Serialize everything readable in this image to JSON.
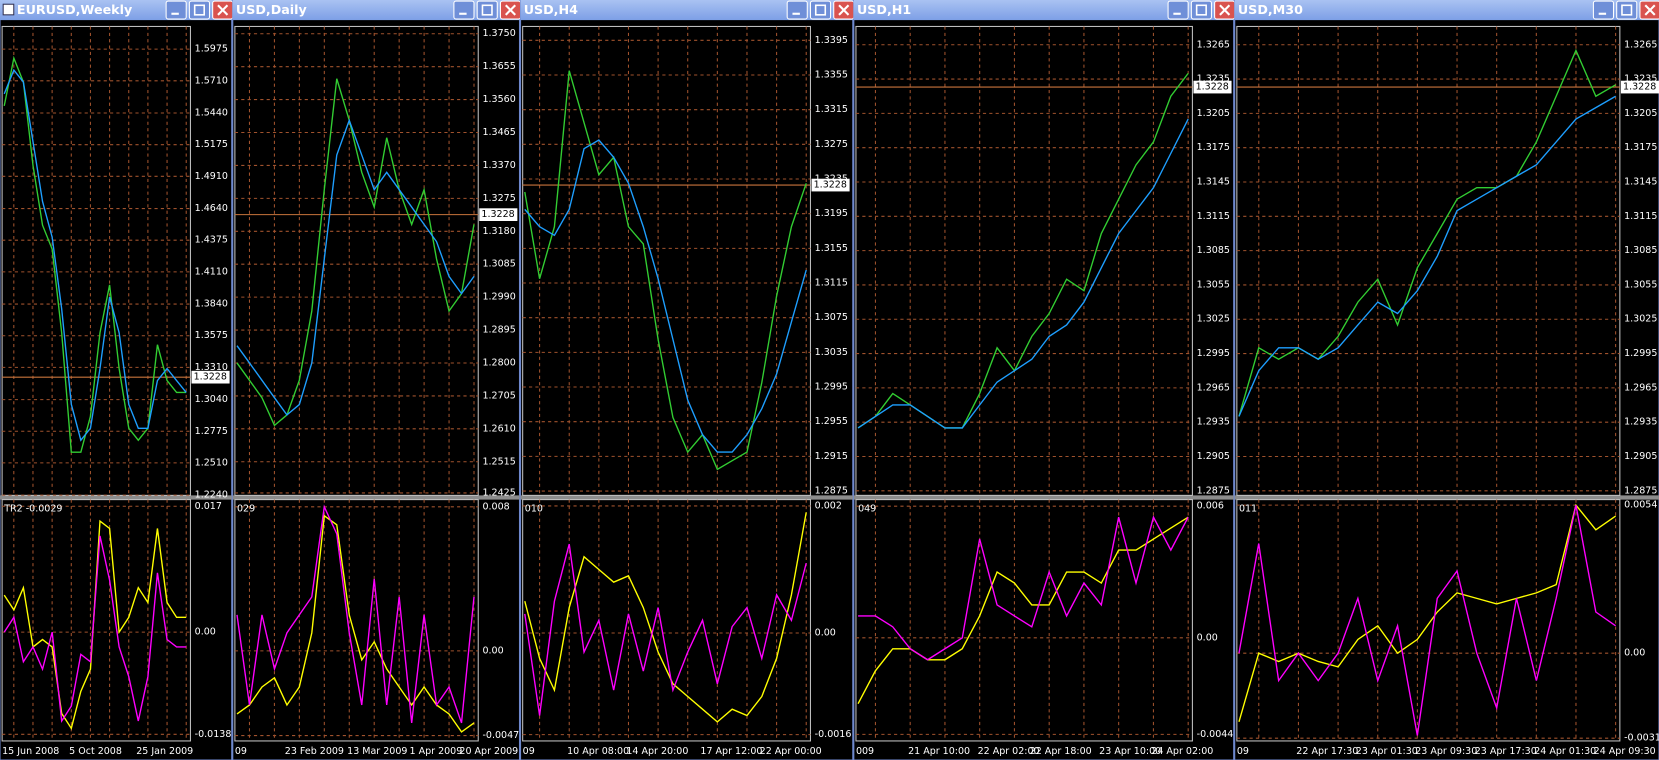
{
  "chart_data": [
    {
      "type": "line",
      "title": "EURUSD,Weekly",
      "categories": [
        "15 Jun 2008",
        null,
        null,
        null,
        null,
        null,
        null,
        "5 Oct 2008",
        null,
        null,
        null,
        null,
        null,
        null,
        "25 Jan 2009",
        null,
        null,
        null,
        null,
        null
      ],
      "series": [
        {
          "color": "#32cd32",
          "values": [
            1.55,
            1.59,
            1.57,
            1.5,
            1.45,
            1.43,
            1.36,
            1.26,
            1.26,
            1.29,
            1.36,
            1.4,
            1.33,
            1.28,
            1.27,
            1.28,
            1.35,
            1.32,
            1.31,
            1.31
          ]
        },
        {
          "color": "#1e9fff",
          "values": [
            1.56,
            1.58,
            1.57,
            1.52,
            1.47,
            1.44,
            1.38,
            1.3,
            1.27,
            1.28,
            1.33,
            1.39,
            1.36,
            1.3,
            1.28,
            1.28,
            1.32,
            1.33,
            1.32,
            1.31
          ]
        }
      ],
      "ylim": [
        1.2238,
        1.6165
      ],
      "yticks": [
        1.5975,
        {
          "value": 1.571,
          "label": "1.5710"
        },
        {
          "value": 1.544,
          "label": "1.5440"
        },
        1.5175,
        {
          "value": 1.491,
          "label": "1.4910"
        },
        {
          "value": 1.464,
          "label": "1.4640"
        },
        1.4375,
        {
          "value": 1.411,
          "label": "1.4110"
        },
        {
          "value": 1.384,
          "label": "1.3840"
        },
        1.3575,
        {
          "value": 1.331,
          "label": "1.3310"
        },
        {
          "value": 1.304,
          "label": "1.3040"
        },
        1.2775,
        {
          "value": 1.251,
          "label": "1.2510"
        },
        {
          "value": 1.224,
          "label": "1.2240"
        }
      ],
      "last_price": 1.3228,
      "indicator": {
        "type": "line",
        "label": "TR2 -0.0029",
        "series": [
          {
            "color": "#ffff00",
            "values": [
              0.005,
              0.003,
              0.006,
              -0.002,
              -0.001,
              -0.002,
              -0.011,
              -0.013,
              -0.008,
              -0.005,
              0.015,
              0.014,
              0.0,
              0.002,
              0.006,
              0.004,
              0.014,
              0.004,
              0.002,
              0.002
            ]
          },
          {
            "color": "#ff00ff",
            "values": [
              0.0,
              0.002,
              -0.004,
              -0.002,
              -0.005,
              0.0,
              -0.012,
              -0.01,
              -0.003,
              -0.004,
              0.013,
              0.007,
              -0.002,
              -0.006,
              -0.012,
              -0.006,
              0.008,
              -0.001,
              -0.002,
              -0.002
            ]
          }
        ],
        "ylim": [
          -0.0147,
          0.0179
        ],
        "yticks": [
          0.017,
          {
            "value": 0,
            "label": "0.00"
          },
          -0.0138
        ]
      }
    },
    {
      "type": "line",
      "title": "USD,Daily",
      "categories": [
        "09",
        null,
        null,
        null,
        "23 Feb 2009",
        null,
        null,
        null,
        null,
        "13 Mar 2009",
        null,
        null,
        null,
        null,
        "1 Apr 2009",
        null,
        null,
        null,
        "20 Apr 2009",
        null
      ],
      "series": [
        {
          "color": "#32cd32",
          "values": [
            1.28,
            1.275,
            1.27,
            1.262,
            1.265,
            1.275,
            1.295,
            1.33,
            1.362,
            1.35,
            1.335,
            1.325,
            1.345,
            1.33,
            1.32,
            1.33,
            1.31,
            1.295,
            1.3,
            1.32
          ]
        },
        {
          "color": "#1e9fff",
          "values": [
            1.285,
            1.28,
            1.275,
            1.27,
            1.265,
            1.268,
            1.28,
            1.31,
            1.34,
            1.35,
            1.34,
            1.33,
            1.335,
            1.33,
            1.325,
            1.32,
            1.315,
            1.305,
            1.3,
            1.305
          ]
        }
      ],
      "ylim": [
        1.2418,
        1.3771
      ],
      "yticks": [
        {
          "value": 1.375,
          "label": "1.3750"
        },
        1.3655,
        {
          "value": 1.356,
          "label": "1.3560"
        },
        1.3465,
        {
          "value": 1.337,
          "label": "1.3370"
        },
        1.3275,
        {
          "value": 1.318,
          "label": "1.3180"
        },
        1.3085,
        {
          "value": 1.299,
          "label": "1.2990"
        },
        1.2895,
        {
          "value": 1.28,
          "label": "1.2800"
        },
        1.2705,
        {
          "value": 1.261,
          "label": "1.2610"
        },
        1.2515,
        1.2425
      ],
      "last_price": 1.3228,
      "indicator": {
        "type": "line",
        "label": "029",
        "series": [
          {
            "color": "#ffff00",
            "values": [
              -0.0035,
              -0.003,
              -0.002,
              -0.0015,
              -0.003,
              -0.002,
              0.001,
              0.0075,
              0.007,
              0.002,
              -0.0005,
              0.0005,
              -0.001,
              -0.002,
              -0.003,
              -0.002,
              -0.003,
              -0.0035,
              -0.0045,
              -0.004
            ]
          },
          {
            "color": "#ff00ff",
            "values": [
              0.002,
              -0.003,
              0.002,
              -0.001,
              0.001,
              0.002,
              0.003,
              0.008,
              0.0065,
              0.001,
              -0.003,
              0.004,
              -0.003,
              0.003,
              -0.004,
              0.002,
              -0.003,
              -0.002,
              -0.004,
              0.003
            ]
          }
        ],
        "ylim": [
          -0.005,
          0.0084
        ],
        "yticks": [
          0.008,
          {
            "value": 0,
            "label": "0.00"
          },
          -0.0047
        ]
      }
    },
    {
      "type": "line",
      "title": "USD,H4",
      "categories": [
        "09",
        null,
        null,
        "10 Apr 08:00",
        null,
        null,
        null,
        "14 Apr 20:00",
        null,
        null,
        null,
        null,
        "17 Apr 12:00",
        null,
        null,
        null,
        "22 Apr 00:00",
        null,
        null,
        null
      ],
      "series": [
        {
          "color": "#32cd32",
          "values": [
            1.322,
            1.312,
            1.318,
            1.336,
            1.33,
            1.324,
            1.326,
            1.318,
            1.316,
            1.305,
            1.296,
            1.292,
            1.294,
            1.29,
            1.291,
            1.292,
            1.3,
            1.31,
            1.318,
            1.323
          ]
        },
        {
          "color": "#1e9fff",
          "values": [
            1.32,
            1.318,
            1.317,
            1.32,
            1.327,
            1.328,
            1.326,
            1.323,
            1.318,
            1.312,
            1.305,
            1.298,
            1.294,
            1.292,
            1.292,
            1.294,
            1.297,
            1.301,
            1.307,
            1.313
          ]
        }
      ],
      "ylim": [
        1.287,
        1.3411
      ],
      "yticks": [
        1.3395,
        1.3355,
        1.3315,
        1.3275,
        1.3235,
        1.3195,
        1.3155,
        1.3115,
        1.3075,
        1.3035,
        1.2995,
        1.2955,
        1.2915,
        1.2875
      ],
      "last_price": 1.3228,
      "indicator": {
        "type": "line",
        "label": "010",
        "series": [
          {
            "color": "#ffff00",
            "values": [
              0.0005,
              -0.0004,
              -0.0009,
              0.0004,
              0.0012,
              0.001,
              0.0008,
              0.0009,
              0.0004,
              -0.0003,
              -0.0008,
              -0.001,
              -0.0012,
              -0.0014,
              -0.0012,
              -0.0013,
              -0.001,
              -0.0004,
              0.0006,
              0.0019
            ]
          },
          {
            "color": "#ff00ff",
            "values": [
              0.0003,
              -0.0013,
              0.0005,
              0.0014,
              -0.0003,
              0.0002,
              -0.0009,
              0.0003,
              -0.0006,
              0.0004,
              -0.0009,
              -0.0003,
              0.0002,
              -0.0008,
              0.0001,
              0.0004,
              -0.0004,
              0.0006,
              0.0002,
              0.0011
            ]
          }
        ],
        "ylim": [
          -0.0017,
          0.0021
        ],
        "yticks": [
          0.002,
          {
            "value": 0,
            "label": "0.00"
          },
          -0.0016
        ]
      }
    },
    {
      "type": "line",
      "title": "USD,H1",
      "categories": [
        "009",
        null,
        null,
        "21 Apr 10:00",
        null,
        null,
        null,
        "22 Apr 02:00",
        null,
        null,
        "22 Apr 18:00",
        null,
        null,
        null,
        "23 Apr 10:00",
        null,
        null,
        "24 Apr 02:00",
        null,
        null
      ],
      "series": [
        {
          "color": "#32cd32",
          "values": [
            1.293,
            1.294,
            1.296,
            1.295,
            1.294,
            1.293,
            1.293,
            1.296,
            1.3,
            1.298,
            1.301,
            1.303,
            1.306,
            1.305,
            1.31,
            1.313,
            1.316,
            1.318,
            1.322,
            1.324
          ]
        },
        {
          "color": "#1e9fff",
          "values": [
            1.293,
            1.294,
            1.295,
            1.295,
            1.294,
            1.293,
            1.293,
            1.295,
            1.297,
            1.298,
            1.299,
            1.301,
            1.302,
            1.304,
            1.307,
            1.31,
            1.312,
            1.314,
            1.317,
            1.32
          ]
        }
      ],
      "ylim": [
        1.2871,
        1.3281
      ],
      "yticks": [
        1.3265,
        1.3235,
        1.3205,
        1.3175,
        1.3145,
        1.3115,
        1.3085,
        1.3055,
        1.3025,
        1.2995,
        1.2965,
        1.2935,
        1.2905,
        1.2875
      ],
      "last_price": 1.3228,
      "indicator": {
        "type": "line",
        "label": "049",
        "series": [
          {
            "color": "#ffff00",
            "values": [
              -0.003,
              -0.0015,
              -0.0005,
              -0.0005,
              -0.001,
              -0.001,
              -0.0005,
              0.001,
              0.003,
              0.0025,
              0.0015,
              0.0015,
              0.003,
              0.003,
              0.0025,
              0.004,
              0.004,
              0.0045,
              0.005,
              0.0055
            ]
          },
          {
            "color": "#ff00ff",
            "values": [
              0.001,
              0.001,
              0.0005,
              -0.0005,
              -0.001,
              -0.0005,
              0.0,
              0.0045,
              0.0015,
              0.001,
              0.0005,
              0.003,
              0.001,
              0.0025,
              0.0015,
              0.0055,
              0.0025,
              0.0055,
              0.004,
              0.0055
            ]
          }
        ],
        "ylim": [
          -0.0047,
          0.0063
        ],
        "yticks": [
          0.006,
          {
            "value": 0,
            "label": "0.00"
          },
          -0.0044
        ]
      }
    },
    {
      "type": "line",
      "title": "USD,M30",
      "categories": [
        "09",
        null,
        null,
        "22 Apr 17:30",
        null,
        null,
        "23 Apr 01:30",
        null,
        null,
        "23 Apr 09:30",
        null,
        null,
        "23 Apr 17:30",
        null,
        null,
        "24 Apr 01:30",
        null,
        null,
        "24 Apr 09:30",
        null
      ],
      "series": [
        {
          "color": "#32cd32",
          "values": [
            1.294,
            1.3,
            1.299,
            1.3,
            1.299,
            1.301,
            1.304,
            1.306,
            1.302,
            1.307,
            1.31,
            1.313,
            1.314,
            1.314,
            1.315,
            1.318,
            1.322,
            1.326,
            1.322,
            1.323
          ]
        },
        {
          "color": "#1e9fff",
          "values": [
            1.294,
            1.298,
            1.3,
            1.3,
            1.299,
            1.3,
            1.302,
            1.304,
            1.303,
            1.305,
            1.308,
            1.312,
            1.313,
            1.314,
            1.315,
            1.316,
            1.318,
            1.32,
            1.321,
            1.322
          ]
        }
      ],
      "ylim": [
        1.2871,
        1.3281
      ],
      "yticks": [
        1.3265,
        1.3235,
        1.3205,
        1.3175,
        1.3145,
        1.3115,
        1.3085,
        1.3055,
        1.3025,
        1.2995,
        1.2965,
        1.2935,
        1.2905,
        1.2875
      ],
      "last_price": 1.3228,
      "indicator": {
        "type": "line",
        "label": "011",
        "series": [
          {
            "color": "#ffff00",
            "values": [
              -0.0025,
              0.0,
              -0.0003,
              0.0,
              -0.0003,
              -0.0005,
              0.0005,
              0.001,
              0.0,
              0.0005,
              0.0015,
              0.0022,
              0.002,
              0.0018,
              0.002,
              0.0022,
              0.0025,
              0.0054,
              0.0045,
              0.005
            ]
          },
          {
            "color": "#ff00ff",
            "values": [
              0.0,
              0.004,
              -0.001,
              0.0,
              -0.001,
              0.0,
              0.002,
              -0.001,
              0.001,
              -0.003,
              0.002,
              0.003,
              0.0,
              -0.002,
              0.002,
              -0.001,
              0.002,
              0.0054,
              0.0015,
              0.001
            ]
          }
        ],
        "ylim": [
          -0.0032,
          0.0056
        ],
        "yticks": [
          0.0054,
          {
            "value": 0,
            "label": "0.00"
          },
          -0.0031
        ]
      }
    }
  ]
}
